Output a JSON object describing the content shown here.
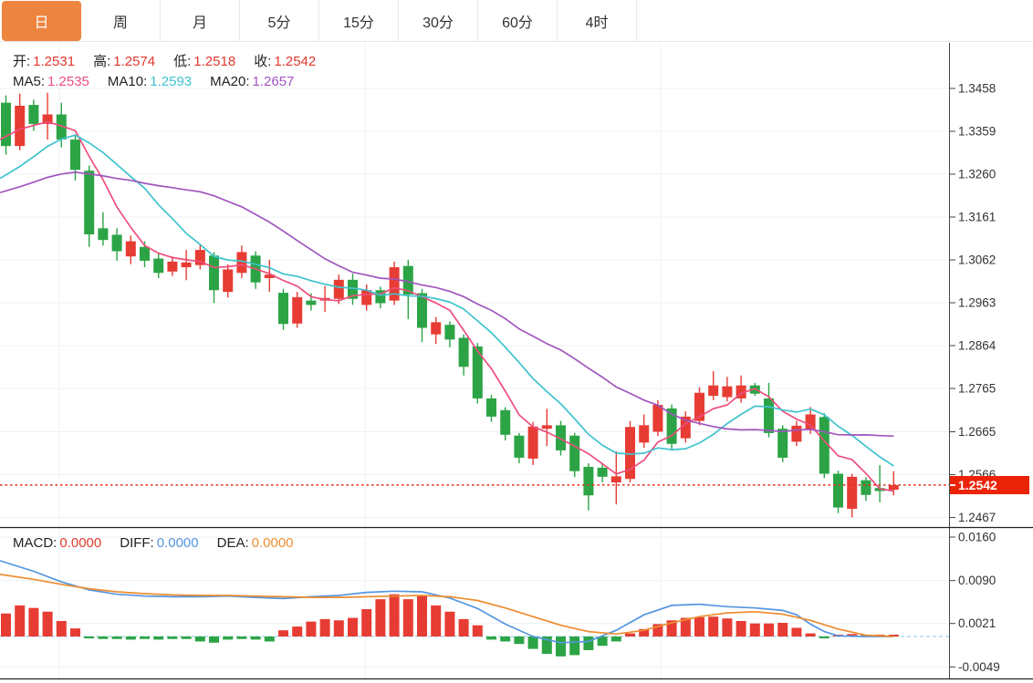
{
  "tabs": {
    "items": [
      {
        "label": "日",
        "active": true
      },
      {
        "label": "周",
        "active": false
      },
      {
        "label": "月",
        "active": false
      },
      {
        "label": "5分",
        "active": false
      },
      {
        "label": "15分",
        "active": false
      },
      {
        "label": "30分",
        "active": false
      },
      {
        "label": "60分",
        "active": false
      },
      {
        "label": "4时",
        "active": false
      }
    ]
  },
  "info": {
    "open_label": "开:",
    "open": "1.2531",
    "high_label": "高:",
    "high": "1.2574",
    "low_label": "低:",
    "low": "1.2518",
    "close_label": "收:",
    "close": "1.2542",
    "ma5_label": "MA5:",
    "ma5": "1.2535",
    "ma10_label": "MA10:",
    "ma10": "1.2593",
    "ma20_label": "MA20:",
    "ma20": "1.2657"
  },
  "macd_info": {
    "macd_label": "MACD:",
    "macd": "0.0000",
    "diff_label": "DIFF:",
    "diff": "0.0000",
    "dea_label": "DEA:",
    "dea": "0.0000"
  },
  "price_tag": {
    "value": "1.2542"
  },
  "colors": {
    "up_red": "#E73C34",
    "down_green": "#2CA446",
    "tag_red": "#EB2309",
    "ma5_pink": "#ED4E7C",
    "ma10_cyan": "#3EC3CE",
    "ma20_purple": "#A155BE",
    "diff_blue": "#5596E0",
    "dea_orange": "#ED8D31",
    "grid": "#ECF1F6",
    "axis": "#444444",
    "separator": "#222222",
    "zero_dash": "#9FD4E8",
    "dotted_price_line": "#E82C1E",
    "active_tab": "#ED8540"
  },
  "chart_data": {
    "type": "candlestick",
    "title": "",
    "legend": [
      "MA5",
      "MA10",
      "MA20",
      "MACD",
      "DIFF",
      "DEA"
    ],
    "price_ticks": [
      1.3458,
      1.3359,
      1.326,
      1.3161,
      1.3062,
      1.2963,
      1.2864,
      1.2765,
      1.2665,
      1.2566,
      1.2467
    ],
    "macd_ticks": [
      0.016,
      0.009,
      0.0021,
      -0.0049
    ],
    "x_gridlines": [
      65,
      400,
      724
    ],
    "current_price": 1.2542,
    "ohlc": [
      [
        1.3425,
        1.3442,
        1.3305,
        1.3325
      ],
      [
        1.3325,
        1.3446,
        1.3315,
        1.3418
      ],
      [
        1.342,
        1.3432,
        1.336,
        1.3376
      ],
      [
        1.3376,
        1.3448,
        1.334,
        1.3398
      ],
      [
        1.3398,
        1.3425,
        1.3322,
        1.334
      ],
      [
        1.334,
        1.3352,
        1.3245,
        1.327
      ],
      [
        1.3268,
        1.328,
        1.3092,
        1.3121
      ],
      [
        1.3135,
        1.3172,
        1.3095,
        1.3108
      ],
      [
        1.312,
        1.3135,
        1.306,
        1.3082
      ],
      [
        1.307,
        1.3118,
        1.3052,
        1.3105
      ],
      [
        1.3092,
        1.3105,
        1.3045,
        1.306
      ],
      [
        1.3065,
        1.3078,
        1.302,
        1.3032
      ],
      [
        1.3035,
        1.307,
        1.3025,
        1.3058
      ],
      [
        1.3045,
        1.3085,
        1.3015,
        1.3056
      ],
      [
        1.305,
        1.3098,
        1.304,
        1.3085
      ],
      [
        1.3072,
        1.308,
        1.2962,
        1.2992
      ],
      [
        1.2988,
        1.3052,
        1.2975,
        1.304
      ],
      [
        1.3032,
        1.3095,
        1.302,
        1.308
      ],
      [
        1.3072,
        1.3082,
        1.2995,
        1.301
      ],
      [
        1.302,
        1.3062,
        1.2988,
        1.3028
      ],
      [
        1.2986,
        1.2995,
        1.29,
        1.2914
      ],
      [
        1.2915,
        1.2988,
        1.2905,
        1.2976
      ],
      [
        1.2968,
        1.2985,
        1.2945,
        1.2958
      ],
      [
        1.2968,
        1.3002,
        1.2942,
        1.2974
      ],
      [
        1.2972,
        1.3028,
        1.296,
        1.3016
      ],
      [
        1.3016,
        1.303,
        1.2958,
        1.2972
      ],
      [
        1.2958,
        1.3005,
        1.2945,
        1.2992
      ],
      [
        1.2992,
        1.3,
        1.295,
        1.2962
      ],
      [
        1.2968,
        1.3058,
        1.2958,
        1.3045
      ],
      [
        1.3048,
        1.3062,
        1.2925,
        1.2982
      ],
      [
        1.2985,
        1.2995,
        1.2872,
        1.2905
      ],
      [
        1.289,
        1.293,
        1.2868,
        1.2918
      ],
      [
        1.2912,
        1.292,
        1.286,
        1.2878
      ],
      [
        1.2882,
        1.289,
        1.2795,
        1.2815
      ],
      [
        1.2862,
        1.287,
        1.273,
        1.2742
      ],
      [
        1.2742,
        1.275,
        1.2688,
        1.27
      ],
      [
        1.2715,
        1.2722,
        1.2645,
        1.2658
      ],
      [
        1.2656,
        1.2662,
        1.2592,
        1.2605
      ],
      [
        1.2603,
        1.2688,
        1.2588,
        1.2677
      ],
      [
        1.2672,
        1.2718,
        1.2632,
        1.268
      ],
      [
        1.268,
        1.269,
        1.261,
        1.2622
      ],
      [
        1.2656,
        1.2662,
        1.256,
        1.2574
      ],
      [
        1.2584,
        1.2592,
        1.2483,
        1.2518
      ],
      [
        1.2582,
        1.259,
        1.2548,
        1.2561
      ],
      [
        1.2548,
        1.262,
        1.2497,
        1.2562
      ],
      [
        1.2556,
        1.269,
        1.2548,
        1.2676
      ],
      [
        1.264,
        1.2705,
        1.2628,
        1.268
      ],
      [
        1.2665,
        1.2738,
        1.2655,
        1.2727
      ],
      [
        1.2719,
        1.2728,
        1.2625,
        1.2637
      ],
      [
        1.265,
        1.2712,
        1.264,
        1.27
      ],
      [
        1.269,
        1.2768,
        1.268,
        1.2755
      ],
      [
        1.2748,
        1.2805,
        1.2738,
        1.2772
      ],
      [
        1.2745,
        1.2792,
        1.2735,
        1.277
      ],
      [
        1.2742,
        1.2795,
        1.2732,
        1.2772
      ],
      [
        1.2772,
        1.2778,
        1.2748,
        1.2753
      ],
      [
        1.2742,
        1.2778,
        1.2652,
        1.2662
      ],
      [
        1.2672,
        1.268,
        1.2595,
        1.2605
      ],
      [
        1.2642,
        1.269,
        1.2632,
        1.2679
      ],
      [
        1.267,
        1.2722,
        1.266,
        1.2705
      ],
      [
        1.2699,
        1.2708,
        1.2558,
        1.2568
      ],
      [
        1.2568,
        1.2575,
        1.2477,
        1.249
      ],
      [
        1.2487,
        1.2568,
        1.2467,
        1.2561
      ],
      [
        1.2553,
        1.256,
        1.2505,
        1.2519
      ],
      [
        1.2535,
        1.2588,
        1.2502,
        1.2528
      ],
      [
        1.2531,
        1.2574,
        1.2518,
        1.2542
      ]
    ],
    "ma_seed": [
      1.315,
      1.315,
      1.3165,
      1.3175,
      1.3185,
      1.319,
      1.3195,
      1.32,
      1.32,
      1.3195,
      1.3195,
      1.314,
      1.315,
      1.316,
      1.317,
      1.318,
      1.33,
      1.333,
      1.336,
      1.3385
    ],
    "ma_periods": [
      5,
      10,
      20
    ],
    "macd_hist": [
      0.0037,
      0.005,
      0.0046,
      0.004,
      0.0025,
      0.0013,
      -0.0003,
      -0.0004,
      -0.0004,
      -0.0005,
      -0.0004,
      -0.0005,
      -0.0004,
      -0.0004,
      -0.0008,
      -0.001,
      -0.0005,
      -0.0004,
      -0.0005,
      -0.0008,
      0.001,
      0.0016,
      0.0024,
      0.0028,
      0.0026,
      0.003,
      0.0044,
      0.006,
      0.0068,
      0.006,
      0.0066,
      0.005,
      0.004,
      0.0028,
      0.0018,
      -0.0005,
      -0.0008,
      -0.0012,
      -0.002,
      -0.0028,
      -0.0032,
      -0.003,
      -0.0022,
      -0.0015,
      -0.0008,
      0.0005,
      0.0012,
      0.002,
      0.0026,
      0.003,
      0.0031,
      0.0032,
      0.0029,
      0.0025,
      0.0021,
      0.0021,
      0.0022,
      0.0014,
      0.0005,
      -0.0003,
      0.0002,
      0.0004,
      0.0002,
      0.0001,
      0.0001
    ],
    "diff_line": [
      [
        0,
        0.0122
      ],
      [
        2,
        0.0105
      ],
      [
        4,
        0.0088
      ],
      [
        6,
        0.0075
      ],
      [
        8,
        0.0068
      ],
      [
        10,
        0.0065
      ],
      [
        12,
        0.0064
      ],
      [
        14,
        0.0064
      ],
      [
        16,
        0.0065
      ],
      [
        18,
        0.0063
      ],
      [
        20,
        0.0061
      ],
      [
        22,
        0.0064
      ],
      [
        24,
        0.0066
      ],
      [
        26,
        0.0071
      ],
      [
        28,
        0.0073
      ],
      [
        30,
        0.0072
      ],
      [
        32,
        0.0062
      ],
      [
        34,
        0.0045
      ],
      [
        36,
        0.002
      ],
      [
        38,
        0.0
      ],
      [
        40,
        -0.001
      ],
      [
        42,
        -0.0008
      ],
      [
        44,
        0.001
      ],
      [
        46,
        0.0035
      ],
      [
        48,
        0.005
      ],
      [
        50,
        0.0052
      ],
      [
        52,
        0.0048
      ],
      [
        54,
        0.0046
      ],
      [
        56,
        0.0042
      ],
      [
        57,
        0.0035
      ],
      [
        58,
        0.002
      ],
      [
        59,
        0.0008
      ],
      [
        60,
        0.0001
      ],
      [
        62,
        0.0
      ],
      [
        64,
        0.0
      ]
    ],
    "dea_line": [
      [
        0,
        0.01
      ],
      [
        2,
        0.0092
      ],
      [
        4,
        0.0084
      ],
      [
        6,
        0.0077
      ],
      [
        8,
        0.0072
      ],
      [
        10,
        0.0069
      ],
      [
        12,
        0.0067
      ],
      [
        14,
        0.0066
      ],
      [
        16,
        0.0066
      ],
      [
        18,
        0.0065
      ],
      [
        20,
        0.0064
      ],
      [
        22,
        0.0063
      ],
      [
        24,
        0.0063
      ],
      [
        26,
        0.0064
      ],
      [
        28,
        0.0065
      ],
      [
        30,
        0.0066
      ],
      [
        32,
        0.0064
      ],
      [
        34,
        0.0058
      ],
      [
        36,
        0.0046
      ],
      [
        38,
        0.0032
      ],
      [
        40,
        0.0018
      ],
      [
        42,
        0.0008
      ],
      [
        44,
        0.0004
      ],
      [
        46,
        0.001
      ],
      [
        48,
        0.0022
      ],
      [
        50,
        0.0032
      ],
      [
        52,
        0.0038
      ],
      [
        54,
        0.004
      ],
      [
        56,
        0.0036
      ],
      [
        58,
        0.0026
      ],
      [
        60,
        0.0012
      ],
      [
        62,
        0.0002
      ],
      [
        64,
        0.0
      ]
    ]
  }
}
